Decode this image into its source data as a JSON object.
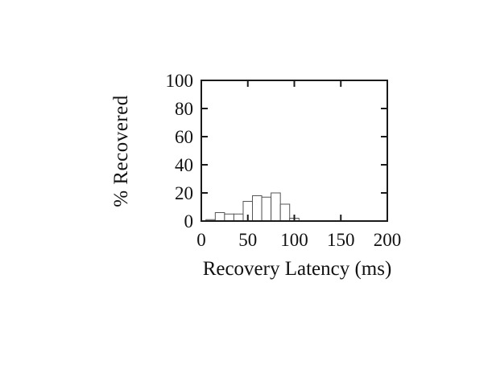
{
  "page": {
    "background": "#ffffff"
  },
  "chart_data": {
    "type": "bar",
    "subtype": "histogram",
    "title": "",
    "xlabel": "Recovery Latency (ms)",
    "ylabel": "% Recovered",
    "x": [
      10,
      20,
      30,
      40,
      50,
      60,
      70,
      80,
      90,
      100
    ],
    "values": [
      1,
      6,
      5,
      5,
      14,
      18,
      17,
      20,
      12,
      2
    ],
    "bin_width": 10,
    "xlim": [
      0,
      200
    ],
    "ylim": [
      0,
      100
    ],
    "xticks": [
      0,
      50,
      100,
      150,
      200
    ],
    "yticks": [
      0,
      20,
      40,
      60,
      80,
      100
    ],
    "grid": false,
    "legend_position": "none",
    "tick_style": "inward-all-four-sides",
    "bar_fill": "#ffffff",
    "bar_stroke": "#555555",
    "frame_color": "#1a1a1a",
    "text_color": "#111111"
  }
}
